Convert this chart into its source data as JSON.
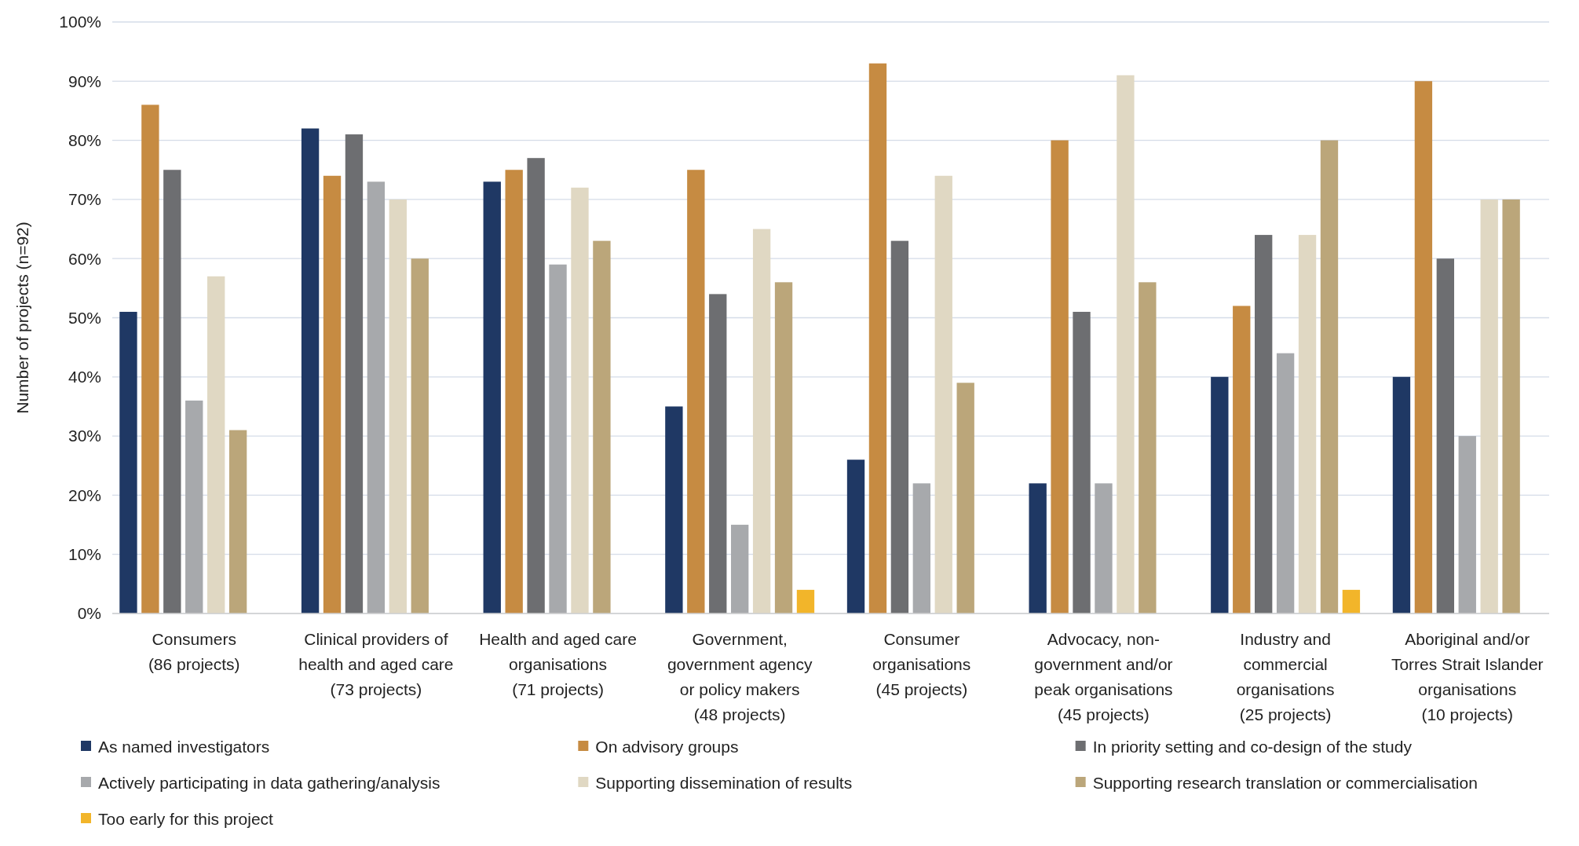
{
  "chart_data": {
    "type": "bar",
    "ylabel": "Number of projects (n=92)",
    "categories": [
      "Consumers\n(86 projects)",
      "Clinical providers of\nhealth and aged care\n(73 projects)",
      "Health and aged care\norganisations\n(71 projects)",
      "Government,\ngovernment agency\nor policy makers\n(48 projects)",
      "Consumer\norganisations\n(45 projects)",
      "Advocacy, non-\ngovernment and/or\npeak organisations\n(45 projects)",
      "Industry and\ncommercial\norganisations\n(25 projects)",
      "Aboriginal and/or\nTorres Strait Islander\norganisations\n(10 projects)"
    ],
    "series": [
      {
        "name": "As named investigators",
        "color": "#1f3864",
        "values": [
          51,
          82,
          73,
          35,
          26,
          22,
          40,
          40
        ]
      },
      {
        "name": "On advisory groups",
        "color": "#c68b42",
        "values": [
          86,
          74,
          75,
          75,
          93,
          80,
          52,
          90
        ]
      },
      {
        "name": "In priority setting and co-design of the study",
        "color": "#6d6e71",
        "values": [
          75,
          81,
          77,
          54,
          63,
          51,
          64,
          60
        ]
      },
      {
        "name": "Actively participating in data gathering/analysis",
        "color": "#a7a9ac",
        "values": [
          36,
          73,
          59,
          15,
          22,
          22,
          44,
          30
        ]
      },
      {
        "name": "Supporting dissemination of results",
        "color": "#e0d8c3",
        "values": [
          57,
          70,
          72,
          65,
          74,
          91,
          64,
          70
        ]
      },
      {
        "name": "Supporting research translation or commercialisation",
        "color": "#bba67a",
        "values": [
          31,
          60,
          63,
          56,
          39,
          56,
          80,
          70
        ]
      },
      {
        "name": "Too early for this project",
        "color": "#f2b52a",
        "values": [
          null,
          null,
          null,
          4,
          null,
          null,
          4,
          null
        ]
      }
    ],
    "ylim": [
      0,
      100
    ],
    "yticks": [
      {
        "value": 0,
        "label": "0%"
      },
      {
        "value": 10,
        "label": "10%"
      },
      {
        "value": 20,
        "label": "20%"
      },
      {
        "value": 30,
        "label": "30%"
      },
      {
        "value": 40,
        "label": "40%"
      },
      {
        "value": 50,
        "label": "50%"
      },
      {
        "value": 60,
        "label": "60%"
      },
      {
        "value": 70,
        "label": "70%"
      },
      {
        "value": 80,
        "label": "80%"
      },
      {
        "value": 90,
        "label": "90%"
      },
      {
        "value": 100,
        "label": "100%"
      }
    ],
    "grid": "y",
    "legend": "bottom"
  }
}
